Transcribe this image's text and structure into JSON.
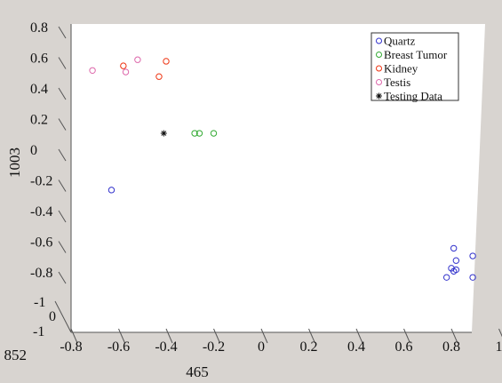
{
  "chart_data": {
    "type": "scatter",
    "title": "",
    "xlabel": "465",
    "ylabel": "1003",
    "zlabel": "852",
    "xlim": [
      -0.8,
      1
    ],
    "ylim": [
      -0.9,
      0.8
    ],
    "grid": false,
    "legend_position": "top-right",
    "x_ticks": [
      "-0.8",
      "-0.6",
      "-0.4",
      "-0.2",
      "0",
      "0.2",
      "0.4",
      "0.6",
      "0.8",
      "1"
    ],
    "y_ticks": [
      "0.8",
      "0.6",
      "0.4",
      "0.2",
      "0",
      "-0.2",
      "-0.4",
      "-0.6",
      "-0.8"
    ],
    "z_ticks": [
      "-1",
      "0",
      "-1"
    ],
    "series": [
      {
        "name": "Quartz",
        "marker": "circle",
        "color": "#3333cc",
        "points": [
          [
            -0.63,
            -0.26
          ],
          [
            0.78,
            -0.83
          ],
          [
            0.8,
            -0.77
          ],
          [
            0.81,
            -0.79
          ],
          [
            0.82,
            -0.78
          ],
          [
            0.82,
            -0.72
          ],
          [
            0.81,
            -0.64
          ],
          [
            0.89,
            -0.69
          ],
          [
            0.89,
            -0.83
          ]
        ]
      },
      {
        "name": "Breast Tumor",
        "marker": "circle",
        "color": "#33aa33",
        "points": [
          [
            -0.28,
            0.11
          ],
          [
            -0.26,
            0.11
          ],
          [
            -0.2,
            0.11
          ]
        ]
      },
      {
        "name": "Kidney",
        "marker": "circle",
        "color": "#ee3311",
        "points": [
          [
            -0.58,
            0.55
          ],
          [
            -0.43,
            0.48
          ],
          [
            -0.4,
            0.58
          ]
        ]
      },
      {
        "name": "Testis",
        "marker": "circle",
        "color": "#dd66aa",
        "points": [
          [
            -0.71,
            0.52
          ],
          [
            -0.57,
            0.51
          ],
          [
            -0.52,
            0.59
          ]
        ]
      },
      {
        "name": "Testing Data",
        "marker": "star",
        "color": "#111111",
        "points": [
          [
            -0.41,
            0.11
          ]
        ]
      }
    ]
  }
}
